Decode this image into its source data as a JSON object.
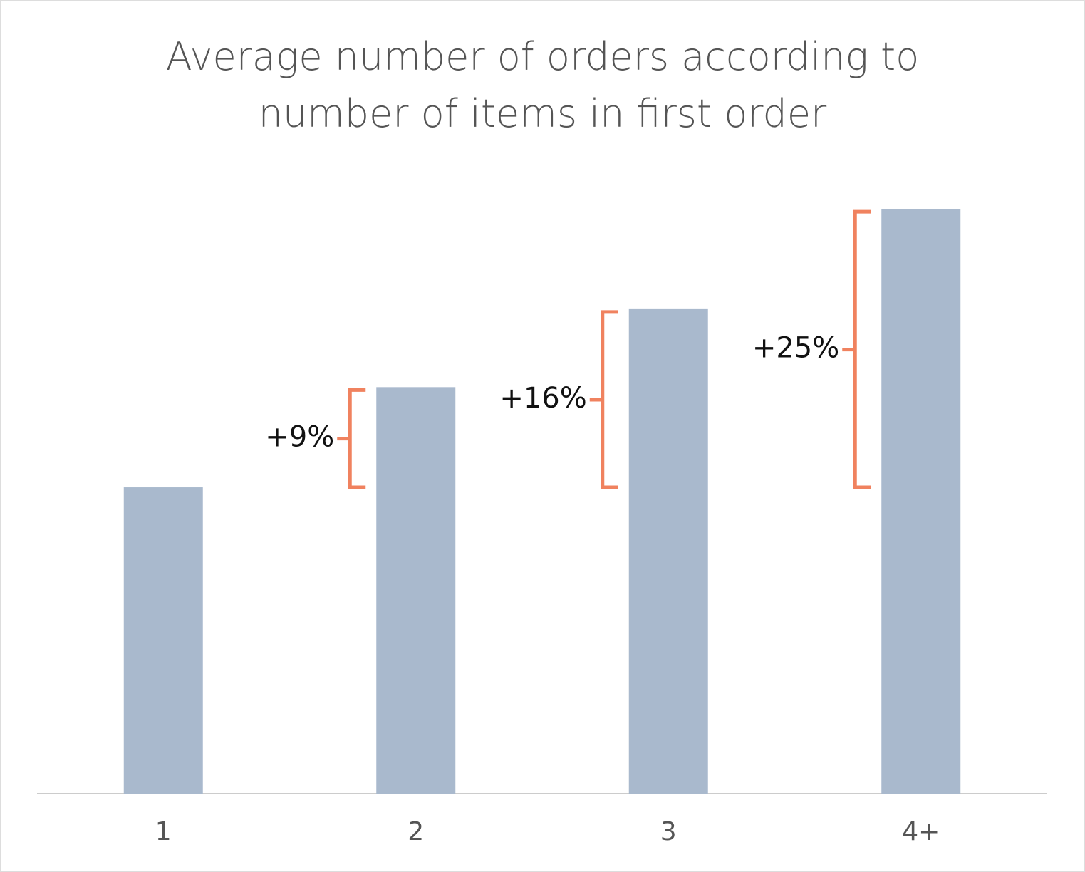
{
  "chart_data": {
    "type": "bar",
    "title": "Average number of orders according to number of items in first order",
    "categories": [
      "1",
      "2",
      "3",
      "4+"
    ],
    "values": [
      100,
      109,
      116,
      125
    ],
    "color": "#a9b9cd",
    "ylim": [
      72.5,
      130
    ],
    "annotations": [
      null,
      "+9%",
      "+16%",
      "+25%"
    ],
    "annotation_color": "#f0825f"
  }
}
